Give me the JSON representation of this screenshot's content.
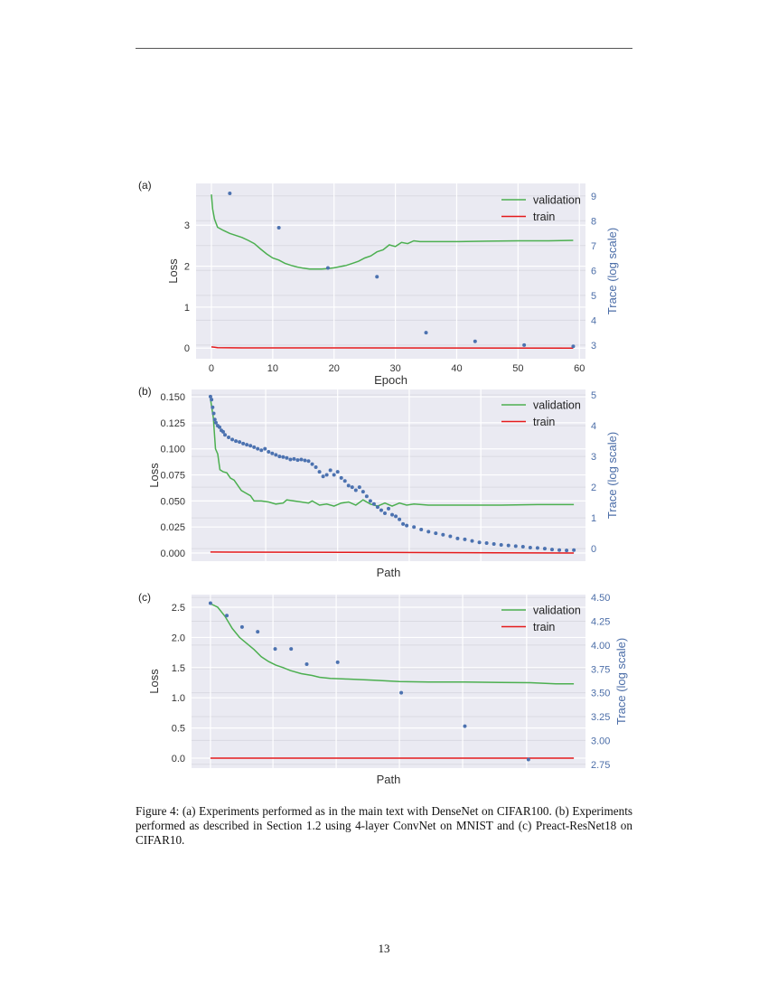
{
  "caption": "Figure 4: (a) Experiments performed as in the main text with DenseNet on CIFAR100. (b) Experiments performed as described in Section 1.2 using 4-layer ConvNet on MNIST and (c) Preact-ResNet18 on CIFAR10.",
  "page_number": "13",
  "colors": {
    "validation": "#4caf50",
    "train": "#e41a1c",
    "trace": "#4c72b0",
    "right_axis": "#4c6ea8",
    "plot_bg": "#eaeaf2"
  },
  "chart_data": [
    {
      "panel": "(a)",
      "type": "line+scatter",
      "xlabel": "Epoch",
      "ylabel": "Loss",
      "ylabel_right": "Trace (log scale)",
      "xlim": [
        -2.5,
        61
      ],
      "ylim": [
        -0.26,
        4.02
      ],
      "ylim_right": [
        2.45,
        9.5
      ],
      "xticks": [
        0,
        10,
        20,
        30,
        40,
        50,
        60
      ],
      "yticks": [
        "0",
        "1",
        "2",
        "3"
      ],
      "yticks_right": [
        "3",
        "4",
        "5",
        "6",
        "7",
        "8",
        "9"
      ],
      "grid": true,
      "legend": {
        "position": "top-right",
        "entries": [
          "validation",
          "train"
        ]
      },
      "series": [
        {
          "name": "validation",
          "kind": "line",
          "points": [
            [
              0,
              3.75
            ],
            [
              0.2,
              3.4
            ],
            [
              0.5,
              3.15
            ],
            [
              1,
              2.95
            ],
            [
              2,
              2.87
            ],
            [
              3,
              2.8
            ],
            [
              4,
              2.75
            ],
            [
              5,
              2.7
            ],
            [
              6,
              2.63
            ],
            [
              7,
              2.55
            ],
            [
              8,
              2.42
            ],
            [
              9,
              2.3
            ],
            [
              10,
              2.2
            ],
            [
              11,
              2.15
            ],
            [
              12,
              2.07
            ],
            [
              13,
              2.02
            ],
            [
              14,
              1.98
            ],
            [
              15,
              1.95
            ],
            [
              16,
              1.93
            ],
            [
              17,
              1.93
            ],
            [
              18,
              1.93
            ],
            [
              19,
              1.94
            ],
            [
              20,
              1.96
            ],
            [
              21,
              1.99
            ],
            [
              22,
              2.02
            ],
            [
              23,
              2.07
            ],
            [
              24,
              2.12
            ],
            [
              25,
              2.2
            ],
            [
              26,
              2.25
            ],
            [
              27,
              2.35
            ],
            [
              28,
              2.4
            ],
            [
              29,
              2.52
            ],
            [
              30,
              2.48
            ],
            [
              31,
              2.58
            ],
            [
              32,
              2.55
            ],
            [
              33,
              2.62
            ],
            [
              34,
              2.6
            ],
            [
              35,
              2.6
            ],
            [
              40,
              2.6
            ],
            [
              45,
              2.61
            ],
            [
              50,
              2.62
            ],
            [
              55,
              2.62
            ],
            [
              59,
              2.63
            ]
          ]
        },
        {
          "name": "train",
          "kind": "line",
          "points": [
            [
              0,
              0.03
            ],
            [
              0.5,
              0.02
            ],
            [
              1,
              0.01
            ],
            [
              5,
              0.005
            ],
            [
              59,
              0.0
            ]
          ]
        },
        {
          "kind": "scatter",
          "axis": "right",
          "points": [
            [
              3,
              9.1
            ],
            [
              11,
              7.72
            ],
            [
              19,
              6.1
            ],
            [
              27,
              5.75
            ],
            [
              35,
              3.5
            ],
            [
              43,
              3.15
            ],
            [
              51,
              3.0
            ],
            [
              59,
              2.95
            ]
          ]
        }
      ]
    },
    {
      "panel": "(b)",
      "type": "line+scatter",
      "xlabel": "Path",
      "ylabel": "Loss",
      "ylabel_right": "Trace (log scale)",
      "xlim": [
        -0.052,
        1.032
      ],
      "ylim": [
        -0.0078,
        0.157
      ],
      "ylim_right": [
        -0.41,
        5.18
      ],
      "xgrid": [
        0.152,
        0.35,
        0.547,
        0.744
      ],
      "yticks": [
        "0.000",
        "0.025",
        "0.050",
        "0.075",
        "0.100",
        "0.125",
        "0.150"
      ],
      "yticks_right": [
        "0",
        "1",
        "2",
        "3",
        "4",
        "5"
      ],
      "grid": true,
      "legend": {
        "position": "top-right",
        "entries": [
          "validation",
          "train"
        ]
      },
      "series": [
        {
          "name": "validation",
          "kind": "line",
          "points": [
            [
              0,
              0.148
            ],
            [
              0.008,
              0.13
            ],
            [
              0.014,
              0.1
            ],
            [
              0.02,
              0.095
            ],
            [
              0.026,
              0.08
            ],
            [
              0.035,
              0.078
            ],
            [
              0.045,
              0.077
            ],
            [
              0.055,
              0.072
            ],
            [
              0.065,
              0.07
            ],
            [
              0.075,
              0.065
            ],
            [
              0.085,
              0.06
            ],
            [
              0.095,
              0.058
            ],
            [
              0.11,
              0.055
            ],
            [
              0.12,
              0.05
            ],
            [
              0.14,
              0.05
            ],
            [
              0.16,
              0.049
            ],
            [
              0.18,
              0.047
            ],
            [
              0.2,
              0.048
            ],
            [
              0.21,
              0.051
            ],
            [
              0.23,
              0.05
            ],
            [
              0.25,
              0.049
            ],
            [
              0.27,
              0.048
            ],
            [
              0.28,
              0.05
            ],
            [
              0.3,
              0.046
            ],
            [
              0.32,
              0.047
            ],
            [
              0.34,
              0.045
            ],
            [
              0.36,
              0.048
            ],
            [
              0.38,
              0.049
            ],
            [
              0.4,
              0.046
            ],
            [
              0.42,
              0.051
            ],
            [
              0.44,
              0.047
            ],
            [
              0.46,
              0.045
            ],
            [
              0.48,
              0.048
            ],
            [
              0.5,
              0.045
            ],
            [
              0.52,
              0.048
            ],
            [
              0.54,
              0.046
            ],
            [
              0.56,
              0.047
            ],
            [
              0.6,
              0.046
            ],
            [
              0.7,
              0.046
            ],
            [
              0.8,
              0.046
            ],
            [
              0.9,
              0.0465
            ],
            [
              1.0,
              0.0465
            ]
          ]
        },
        {
          "name": "train",
          "kind": "line",
          "points": [
            [
              0,
              0.001
            ],
            [
              0.5,
              0.0005
            ],
            [
              1.0,
              0.0
            ]
          ]
        },
        {
          "kind": "scatter",
          "axis": "right",
          "points": [
            [
              0,
              4.95
            ],
            [
              0.003,
              4.85
            ],
            [
              0.006,
              4.6
            ],
            [
              0.009,
              4.4
            ],
            [
              0.012,
              4.2
            ],
            [
              0.015,
              4.1
            ],
            [
              0.02,
              4.0
            ],
            [
              0.025,
              3.95
            ],
            [
              0.03,
              3.85
            ],
            [
              0.035,
              3.8
            ],
            [
              0.04,
              3.7
            ],
            [
              0.05,
              3.62
            ],
            [
              0.06,
              3.55
            ],
            [
              0.07,
              3.5
            ],
            [
              0.08,
              3.47
            ],
            [
              0.09,
              3.42
            ],
            [
              0.1,
              3.38
            ],
            [
              0.11,
              3.35
            ],
            [
              0.12,
              3.3
            ],
            [
              0.13,
              3.25
            ],
            [
              0.14,
              3.2
            ],
            [
              0.15,
              3.25
            ],
            [
              0.16,
              3.15
            ],
            [
              0.17,
              3.1
            ],
            [
              0.18,
              3.05
            ],
            [
              0.19,
              3.0
            ],
            [
              0.2,
              2.98
            ],
            [
              0.21,
              2.95
            ],
            [
              0.22,
              2.9
            ],
            [
              0.23,
              2.92
            ],
            [
              0.24,
              2.88
            ],
            [
              0.25,
              2.9
            ],
            [
              0.26,
              2.87
            ],
            [
              0.27,
              2.85
            ],
            [
              0.28,
              2.75
            ],
            [
              0.29,
              2.65
            ],
            [
              0.3,
              2.5
            ],
            [
              0.31,
              2.35
            ],
            [
              0.32,
              2.4
            ],
            [
              0.33,
              2.55
            ],
            [
              0.34,
              2.4
            ],
            [
              0.35,
              2.5
            ],
            [
              0.36,
              2.3
            ],
            [
              0.37,
              2.2
            ],
            [
              0.38,
              2.05
            ],
            [
              0.39,
              2.0
            ],
            [
              0.4,
              1.9
            ],
            [
              0.41,
              2.0
            ],
            [
              0.42,
              1.85
            ],
            [
              0.43,
              1.7
            ],
            [
              0.44,
              1.55
            ],
            [
              0.45,
              1.45
            ],
            [
              0.46,
              1.35
            ],
            [
              0.47,
              1.25
            ],
            [
              0.48,
              1.15
            ],
            [
              0.49,
              1.3
            ],
            [
              0.5,
              1.1
            ],
            [
              0.51,
              1.05
            ],
            [
              0.52,
              0.95
            ],
            [
              0.53,
              0.8
            ],
            [
              0.54,
              0.75
            ],
            [
              0.56,
              0.7
            ],
            [
              0.58,
              0.62
            ],
            [
              0.6,
              0.55
            ],
            [
              0.62,
              0.5
            ],
            [
              0.64,
              0.45
            ],
            [
              0.66,
              0.4
            ],
            [
              0.68,
              0.33
            ],
            [
              0.7,
              0.3
            ],
            [
              0.72,
              0.25
            ],
            [
              0.74,
              0.2
            ],
            [
              0.76,
              0.18
            ],
            [
              0.78,
              0.15
            ],
            [
              0.8,
              0.12
            ],
            [
              0.82,
              0.1
            ],
            [
              0.84,
              0.08
            ],
            [
              0.86,
              0.06
            ],
            [
              0.88,
              0.03
            ],
            [
              0.9,
              0.02
            ],
            [
              0.92,
              0.0
            ],
            [
              0.94,
              -0.03
            ],
            [
              0.96,
              -0.05
            ],
            [
              0.98,
              -0.06
            ],
            [
              1.0,
              -0.05
            ]
          ]
        }
      ]
    },
    {
      "panel": "(c)",
      "type": "line+scatter",
      "xlabel": "Path",
      "ylabel": "Loss",
      "ylabel_right": "Trace (log scale)",
      "xlim": [
        -0.052,
        1.032
      ],
      "ylim": [
        -0.165,
        2.71
      ],
      "ylim_right": [
        2.71,
        4.53
      ],
      "xgrid": [
        0,
        0.172,
        0.346,
        0.52,
        0.694,
        0.87
      ],
      "yticks": [
        "0.0",
        "0.5",
        "1.0",
        "1.5",
        "2.0",
        "2.5"
      ],
      "yticks_right": [
        "2.75",
        "3.00",
        "3.25",
        "3.50",
        "3.75",
        "4.00",
        "4.25",
        "4.50"
      ],
      "grid": true,
      "legend": {
        "position": "top-right",
        "entries": [
          "validation",
          "train"
        ]
      },
      "series": [
        {
          "name": "validation",
          "kind": "line",
          "points": [
            [
              0,
              2.56
            ],
            [
              0.02,
              2.5
            ],
            [
              0.04,
              2.35
            ],
            [
              0.06,
              2.15
            ],
            [
              0.08,
              2.0
            ],
            [
              0.1,
              1.9
            ],
            [
              0.12,
              1.8
            ],
            [
              0.14,
              1.68
            ],
            [
              0.16,
              1.6
            ],
            [
              0.18,
              1.54
            ],
            [
              0.2,
              1.5
            ],
            [
              0.22,
              1.45
            ],
            [
              0.25,
              1.4
            ],
            [
              0.28,
              1.37
            ],
            [
              0.3,
              1.34
            ],
            [
              0.33,
              1.32
            ],
            [
              0.38,
              1.31
            ],
            [
              0.45,
              1.29
            ],
            [
              0.52,
              1.27
            ],
            [
              0.6,
              1.26
            ],
            [
              0.7,
              1.26
            ],
            [
              0.8,
              1.255
            ],
            [
              0.88,
              1.25
            ],
            [
              0.95,
              1.23
            ],
            [
              1.0,
              1.23
            ]
          ]
        },
        {
          "name": "train",
          "kind": "line",
          "points": [
            [
              0,
              0.0
            ],
            [
              1.0,
              0.0
            ]
          ]
        },
        {
          "kind": "scatter",
          "axis": "right",
          "points": [
            [
              0,
              4.44
            ],
            [
              0.045,
              4.31
            ],
            [
              0.087,
              4.19
            ],
            [
              0.13,
              4.14
            ],
            [
              0.178,
              3.96
            ],
            [
              0.222,
              3.96
            ],
            [
              0.265,
              3.8
            ],
            [
              0.35,
              3.82
            ],
            [
              0.525,
              3.5
            ],
            [
              0.7,
              3.15
            ],
            [
              0.875,
              2.8
            ]
          ]
        }
      ]
    }
  ]
}
